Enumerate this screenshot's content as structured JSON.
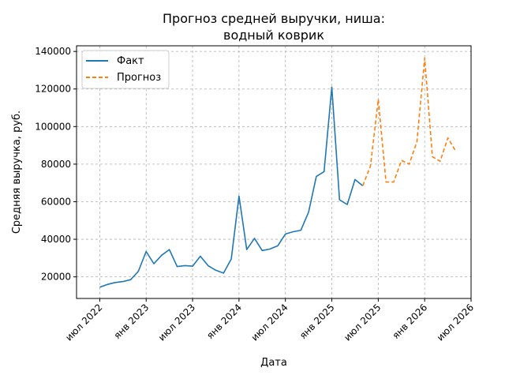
{
  "chart_data": {
    "type": "line",
    "title_lines": [
      "Прогноз средней выручки, ниша:",
      "водный коврик"
    ],
    "xlabel": "Дата",
    "ylabel": "Средняя выручка, руб.",
    "x_ticks": [
      {
        "date": "2022-07",
        "label": "июл 2022"
      },
      {
        "date": "2023-01",
        "label": "янв 2023"
      },
      {
        "date": "2023-07",
        "label": "июл 2023"
      },
      {
        "date": "2024-01",
        "label": "янв 2024"
      },
      {
        "date": "2024-07",
        "label": "июл 2024"
      },
      {
        "date": "2025-01",
        "label": "янв 2025"
      },
      {
        "date": "2025-07",
        "label": "июл 2025"
      },
      {
        "date": "2026-01",
        "label": "янв 2026"
      },
      {
        "date": "2026-07",
        "label": "июл 2026"
      }
    ],
    "y_ticks": [
      20000,
      40000,
      60000,
      80000,
      100000,
      120000,
      140000
    ],
    "xlim": [
      "2022-04",
      "2026-07"
    ],
    "ylim": [
      8500,
      143000
    ],
    "grid": true,
    "legend_position": "top-left",
    "series": [
      {
        "name": "Факт",
        "color": "#1f77b4",
        "style": "solid",
        "points": [
          [
            "2022-07",
            14500
          ],
          [
            "2022-08",
            16000
          ],
          [
            "2022-09",
            17000
          ],
          [
            "2022-10",
            17500
          ],
          [
            "2022-11",
            18500
          ],
          [
            "2022-12",
            23000
          ],
          [
            "2023-01",
            33500
          ],
          [
            "2023-02",
            27000
          ],
          [
            "2023-03",
            31500
          ],
          [
            "2023-04",
            34500
          ],
          [
            "2023-05",
            25500
          ],
          [
            "2023-06",
            26000
          ],
          [
            "2023-07",
            25700
          ],
          [
            "2023-08",
            31000
          ],
          [
            "2023-09",
            26000
          ],
          [
            "2023-10",
            23500
          ],
          [
            "2023-11",
            22000
          ],
          [
            "2023-12",
            29500
          ],
          [
            "2024-01",
            63000
          ],
          [
            "2024-02",
            34500
          ],
          [
            "2024-03",
            40500
          ],
          [
            "2024-04",
            34000
          ],
          [
            "2024-05",
            34800
          ],
          [
            "2024-06",
            36500
          ],
          [
            "2024-07",
            42800
          ],
          [
            "2024-08",
            44000
          ],
          [
            "2024-09",
            44800
          ],
          [
            "2024-10",
            54500
          ],
          [
            "2024-11",
            73500
          ],
          [
            "2024-12",
            76000
          ],
          [
            "2025-01",
            121000
          ],
          [
            "2025-02",
            61000
          ],
          [
            "2025-03",
            58500
          ],
          [
            "2025-04",
            71800
          ],
          [
            "2025-05",
            68500
          ]
        ]
      },
      {
        "name": "Прогноз",
        "color": "#ff7f0e",
        "style": "dashed",
        "points": [
          [
            "2025-05",
            68500
          ],
          [
            "2025-06",
            79000
          ],
          [
            "2025-07",
            114500
          ],
          [
            "2025-08",
            70500
          ],
          [
            "2025-09",
            70500
          ],
          [
            "2025-10",
            82000
          ],
          [
            "2025-11",
            80000
          ],
          [
            "2025-12",
            92000
          ],
          [
            "2026-01",
            136500
          ],
          [
            "2026-02",
            84000
          ],
          [
            "2026-03",
            81500
          ],
          [
            "2026-04",
            94000
          ],
          [
            "2026-05",
            87000
          ]
        ]
      }
    ]
  }
}
